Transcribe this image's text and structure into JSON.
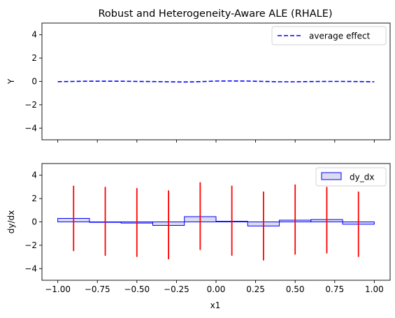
{
  "chart_data": [
    {
      "type": "line",
      "title": "Robust and Heterogeneity-Aware ALE (RHALE)",
      "xlabel": "",
      "ylabel": "Y",
      "xlim": [
        -1.1,
        1.1
      ],
      "ylim": [
        -5,
        5
      ],
      "xticks": [
        -1.0,
        -0.75,
        -0.5,
        -0.25,
        0.0,
        0.25,
        0.5,
        0.75,
        1.0
      ],
      "yticks": [
        -4,
        -2,
        0,
        2,
        4
      ],
      "ytick_labels": [
        "−4",
        "−2",
        "0",
        "2",
        "4"
      ],
      "show_xtick_labels": false,
      "grid": false,
      "legend_position": "top-right",
      "series": [
        {
          "name": "average effect",
          "style": "dashed",
          "color": "#0000ff",
          "x": [
            -1.0,
            -0.9,
            -0.8,
            -0.7,
            -0.6,
            -0.5,
            -0.4,
            -0.3,
            -0.2,
            -0.1,
            0.0,
            0.1,
            0.2,
            0.3,
            0.4,
            0.5,
            0.6,
            0.7,
            0.8,
            0.9,
            1.0
          ],
          "y": [
            -0.02,
            0.0,
            0.02,
            0.02,
            0.02,
            0.0,
            -0.01,
            -0.03,
            -0.05,
            -0.02,
            0.03,
            0.04,
            0.03,
            0.0,
            -0.03,
            -0.03,
            -0.01,
            0.0,
            0.0,
            -0.01,
            -0.03
          ]
        }
      ]
    },
    {
      "type": "bar",
      "title": "",
      "xlabel": "x1",
      "ylabel": "dy/dx",
      "xlim": [
        -1.1,
        1.1
      ],
      "ylim": [
        -5,
        5
      ],
      "xticks": [
        -1.0,
        -0.75,
        -0.5,
        -0.25,
        0.0,
        0.25,
        0.5,
        0.75,
        1.0
      ],
      "xtick_labels": [
        "−1.00",
        "−0.75",
        "−0.50",
        "−0.25",
        "0.00",
        "0.25",
        "0.50",
        "0.75",
        "1.00"
      ],
      "yticks": [
        -4,
        -2,
        0,
        2,
        4
      ],
      "ytick_labels": [
        "−4",
        "−2",
        "0",
        "2",
        "4"
      ],
      "grid": false,
      "legend_position": "top-right",
      "series": [
        {
          "name": "dy_dx",
          "color": "#0000ff",
          "fill": "#dcdcf0",
          "bins": [
            {
              "x0": -1.0,
              "x1": -0.8,
              "value": 0.3
            },
            {
              "x0": -0.8,
              "x1": -0.6,
              "value": 0.0
            },
            {
              "x0": -0.6,
              "x1": -0.4,
              "value": -0.1
            },
            {
              "x0": -0.4,
              "x1": -0.2,
              "value": -0.3
            },
            {
              "x0": -0.2,
              "x1": 0.0,
              "value": 0.45
            },
            {
              "x0": 0.0,
              "x1": 0.2,
              "value": 0.05
            },
            {
              "x0": 0.2,
              "x1": 0.4,
              "value": -0.35
            },
            {
              "x0": 0.4,
              "x1": 0.6,
              "value": 0.15
            },
            {
              "x0": 0.6,
              "x1": 0.8,
              "value": 0.2
            },
            {
              "x0": 0.8,
              "x1": 1.0,
              "value": -0.2
            }
          ]
        }
      ],
      "error_bars": {
        "color": "#ff0000",
        "x": [
          -0.9,
          -0.7,
          -0.5,
          -0.3,
          -0.1,
          0.1,
          0.3,
          0.5,
          0.7,
          0.9
        ],
        "low": [
          -2.5,
          -2.9,
          -3.0,
          -3.2,
          -2.4,
          -2.9,
          -3.3,
          -2.8,
          -2.7,
          -3.0
        ],
        "high": [
          3.1,
          3.0,
          2.9,
          2.7,
          3.4,
          3.1,
          2.6,
          3.2,
          3.0,
          2.6
        ]
      }
    }
  ]
}
